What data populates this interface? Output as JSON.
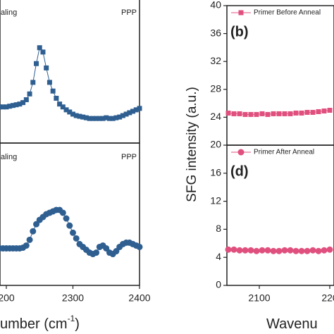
{
  "chart_data": [
    {
      "type": "line",
      "marker": "square",
      "texts": [
        "aling",
        "PPP"
      ],
      "x": [
        2190,
        2195,
        2200,
        2205,
        2210,
        2215,
        2220,
        2225,
        2230,
        2235,
        2240,
        2245,
        2250,
        2255,
        2260,
        2265,
        2270,
        2275,
        2280,
        2285,
        2290,
        2295,
        2300,
        2305,
        2310,
        2315,
        2320,
        2325,
        2330,
        2335,
        2340,
        2345,
        2350,
        2355,
        2360,
        2365,
        2370,
        2375,
        2380,
        2385,
        2390,
        2395,
        2400
      ],
      "series": [
        {
          "color": "#2f5f91",
          "values": [
            25,
            25,
            25,
            25.5,
            26,
            26.5,
            27,
            28,
            30,
            34,
            42,
            55,
            66,
            63,
            52,
            42,
            36,
            31,
            27,
            25,
            23,
            21.5,
            20,
            19,
            18.5,
            18,
            17.5,
            17,
            17,
            17,
            17,
            17,
            17.5,
            17,
            17,
            17.5,
            18,
            19,
            20,
            21,
            22,
            23,
            24
          ]
        }
      ],
      "xlim": [
        2190.5,
        2400
      ],
      "ylim": [
        0,
        100
      ]
    },
    {
      "type": "line",
      "marker": "circle",
      "texts": [
        "aling",
        "PPP"
      ],
      "x": [
        2190,
        2195,
        2200,
        2205,
        2210,
        2215,
        2220,
        2225,
        2230,
        2235,
        2240,
        2245,
        2250,
        2255,
        2260,
        2265,
        2270,
        2275,
        2280,
        2285,
        2290,
        2295,
        2300,
        2305,
        2310,
        2315,
        2320,
        2325,
        2330,
        2335,
        2340,
        2345,
        2350,
        2355,
        2360,
        2365,
        2370,
        2375,
        2380,
        2385,
        2390,
        2395,
        2400
      ],
      "series": [
        {
          "color": "#2f5f91",
          "values": [
            26,
            26,
            26,
            26,
            26,
            26,
            26,
            26.5,
            28,
            32,
            38,
            43,
            46,
            48,
            50,
            51,
            52,
            53,
            53,
            51,
            47,
            42,
            37,
            33,
            29,
            27,
            25,
            23,
            22,
            23,
            27,
            28,
            26,
            23,
            22,
            24,
            27,
            29,
            30,
            30,
            29,
            28,
            27
          ]
        }
      ],
      "xlim": [
        2190.5,
        2400
      ],
      "ylim": [
        0,
        100
      ],
      "xticks": [
        {
          "value": 2200,
          "label": "200"
        },
        2300,
        2400
      ],
      "xlabel": "umber (cm",
      "xlabel_sup": "-1",
      "xlabel_end": ")"
    },
    {
      "type": "line",
      "marker": "square",
      "panel": "(b)",
      "x": [
        2056,
        2064,
        2072,
        2080,
        2088,
        2096,
        2104,
        2112,
        2120,
        2128,
        2136,
        2144,
        2152,
        2160,
        2168,
        2176,
        2184,
        2192,
        2200
      ],
      "series": [
        {
          "name": "Primer Before Anneal",
          "color": "#e0507e",
          "values": [
            24.6,
            24.5,
            24.5,
            24.4,
            24.4,
            24.4,
            24.5,
            24.4,
            24.5,
            24.5,
            24.5,
            24.5,
            24.6,
            24.6,
            24.7,
            24.7,
            24.8,
            24.9,
            25.0
          ]
        }
      ],
      "xlim": [
        2054,
        2206
      ],
      "ylim": [
        20,
        40
      ],
      "yticks": [
        20,
        24,
        28,
        32,
        36,
        40
      ]
    },
    {
      "type": "line",
      "marker": "circle",
      "panel": "(d)",
      "x": [
        2056,
        2064,
        2072,
        2080,
        2088,
        2096,
        2104,
        2112,
        2120,
        2128,
        2136,
        2144,
        2152,
        2160,
        2168,
        2176,
        2184,
        2192,
        2200
      ],
      "series": [
        {
          "name": "Primer After Anneal",
          "color": "#e0507e",
          "values": [
            5.1,
            5.1,
            5.0,
            5.0,
            5.0,
            4.9,
            5.0,
            5.0,
            4.9,
            4.9,
            5.0,
            5.0,
            4.9,
            4.9,
            4.9,
            5.0,
            4.9,
            5.0,
            5.1
          ]
        }
      ],
      "xlim": [
        2054,
        2206
      ],
      "ylim": [
        0,
        20
      ],
      "yticks": [
        0,
        4,
        8,
        12,
        16
      ],
      "xticks": [
        2100,
        {
          "value": 2200,
          "label": "220"
        }
      ],
      "xlabel": "Wavenu",
      "ylabel": "SFG intensity (a.u.)"
    }
  ]
}
